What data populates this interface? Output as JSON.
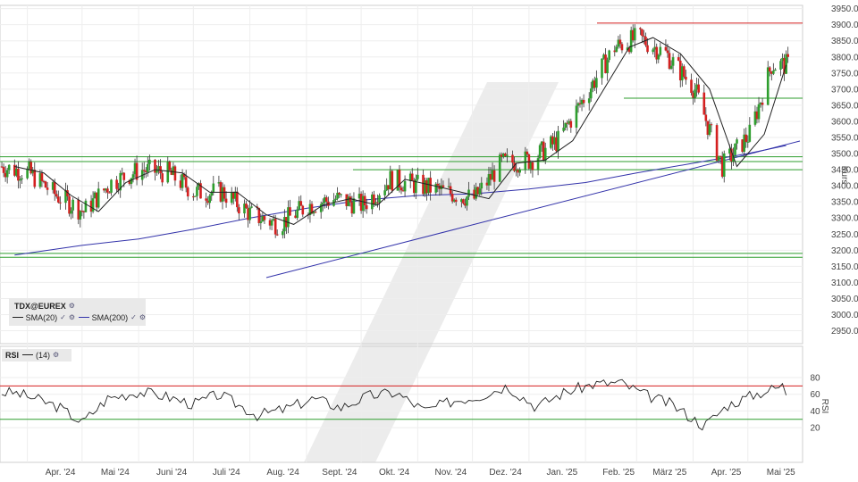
{
  "chart_data": [
    {
      "type": "candlestick",
      "instrument": "TDX@EUREX",
      "ylabel": "Kurs",
      "ylim": [
        2910,
        3960
      ],
      "y_ticks": [
        "3950.00",
        "3900.00",
        "3850.00",
        "3800.00",
        "3750.00",
        "3700.00",
        "3650.00",
        "3600.00",
        "3550.00",
        "3500.00",
        "3450.00",
        "3400.00",
        "3350.00",
        "3300.00",
        "3250.00",
        "3200.00",
        "3150.00",
        "3100.00",
        "3050.00",
        "3000.00",
        "2950.00"
      ],
      "x_ticks": [
        "Apr. '24",
        "Mai '24",
        "Juni '24",
        "Juli '24",
        "Aug. '24",
        "Sept. '24",
        "Okt. '24",
        "Nov. '24",
        "Dez. '24",
        "Jan. '25",
        "Feb. '25",
        "März '25",
        "Apr. '25",
        "Mai '25"
      ],
      "grid": true,
      "legend": {
        "title": "TDX@EUREX",
        "items": [
          {
            "label": "SMA(20)",
            "color": "#222222"
          },
          {
            "label": "SMA(200)",
            "color": "#3333aa"
          }
        ]
      },
      "colors": {
        "up": "#2e9e2e",
        "down": "#d42020",
        "sma20": "#222222",
        "sma200": "#3333aa",
        "trendline": "#3333aa",
        "support": "#2e9e2e",
        "resistance": "#d42020"
      },
      "series": [
        {
          "name": "SMA(20)",
          "x": [
            "2024-03-25",
            "2024-04-10",
            "2024-04-25",
            "2024-05-10",
            "2024-05-25",
            "2024-06-10",
            "2024-06-25",
            "2024-07-10",
            "2024-07-25",
            "2024-08-10",
            "2024-08-25",
            "2024-09-10",
            "2024-09-25",
            "2024-10-10",
            "2024-10-25",
            "2024-11-10",
            "2024-11-25",
            "2024-12-10",
            "2024-12-25",
            "2025-01-10",
            "2025-01-25",
            "2025-02-10",
            "2025-02-25",
            "2025-03-10",
            "2025-03-25",
            "2025-04-10",
            "2025-04-25",
            "2025-05-10",
            "2025-05-22"
          ],
          "values": [
            3460,
            3440,
            3370,
            3320,
            3410,
            3450,
            3440,
            3380,
            3380,
            3310,
            3280,
            3340,
            3360,
            3340,
            3420,
            3400,
            3380,
            3360,
            3470,
            3480,
            3540,
            3690,
            3830,
            3860,
            3810,
            3700,
            3460,
            3560,
            3775
          ]
        },
        {
          "name": "SMA(200)",
          "x": [
            "2024-03-25",
            "2024-05-01",
            "2024-06-01",
            "2024-07-01",
            "2024-08-01",
            "2024-09-01",
            "2024-10-01",
            "2024-11-01",
            "2024-12-01",
            "2025-01-01",
            "2025-02-01",
            "2025-03-01",
            "2025-04-01",
            "2025-05-01",
            "2025-05-22"
          ],
          "values": [
            3185,
            3215,
            3235,
            3265,
            3300,
            3330,
            3355,
            3370,
            3375,
            3390,
            3410,
            3440,
            3470,
            3500,
            3525
          ]
        },
        {
          "name": "Candles",
          "x": [
            "2024-03-25",
            "2024-05-22"
          ],
          "open": [
            3455,
            3420
          ],
          "close": [
            3470,
            3860
          ],
          "note": ""
        }
      ],
      "lines": [
        {
          "type": "horizontal",
          "value": 3905,
          "color": "#d42020"
        },
        {
          "type": "horizontal",
          "value": 3672,
          "color": "#2e9e2e"
        },
        {
          "type": "horizontal",
          "value": 3490,
          "color": "#2e9e2e"
        },
        {
          "type": "horizontal",
          "value": 3475,
          "color": "#2e9e2e"
        },
        {
          "type": "horizontal",
          "value": 3450,
          "color": "#2e9e2e"
        },
        {
          "type": "horizontal",
          "value": 3190,
          "color": "#2e9e2e"
        },
        {
          "type": "horizontal",
          "value": 3178,
          "color": "#2e9e2e"
        },
        {
          "type": "trend",
          "from": [
            "2024-08-05",
            3120
          ],
          "to": [
            "2025-05-22",
            3530
          ],
          "color": "#3333aa"
        }
      ]
    },
    {
      "type": "line",
      "title": "RSI",
      "ylabel": "RSI",
      "ylim": [
        0,
        100
      ],
      "y_ticks": [
        "80",
        "60",
        "40",
        "20"
      ],
      "legend": {
        "items": [
          {
            "label": "(14)",
            "color": "#222222"
          }
        ]
      },
      "levels": [
        {
          "value": 70,
          "color": "#d42020"
        },
        {
          "value": 30,
          "color": "#2e9e2e"
        }
      ],
      "series": [
        {
          "name": "(14)",
          "x": [
            "2024-03-25",
            "2024-04-05",
            "2024-04-18",
            "2024-05-01",
            "2024-05-15",
            "2024-06-01",
            "2024-06-15",
            "2024-07-01",
            "2024-07-15",
            "2024-08-05",
            "2024-08-20",
            "2024-09-05",
            "2024-09-20",
            "2024-10-05",
            "2024-10-20",
            "2024-11-05",
            "2024-11-20",
            "2024-12-05",
            "2024-12-20",
            "2025-01-05",
            "2025-01-20",
            "2025-02-05",
            "2025-02-20",
            "2025-03-05",
            "2025-03-20",
            "2025-04-07",
            "2025-04-20",
            "2025-05-05",
            "2025-05-20",
            "2025-05-22"
          ],
          "values": [
            62,
            55,
            45,
            26,
            55,
            63,
            58,
            48,
            60,
            35,
            42,
            55,
            44,
            58,
            62,
            40,
            52,
            58,
            70,
            45,
            62,
            72,
            74,
            60,
            48,
            22,
            47,
            60,
            70,
            62
          ]
        }
      ]
    }
  ]
}
